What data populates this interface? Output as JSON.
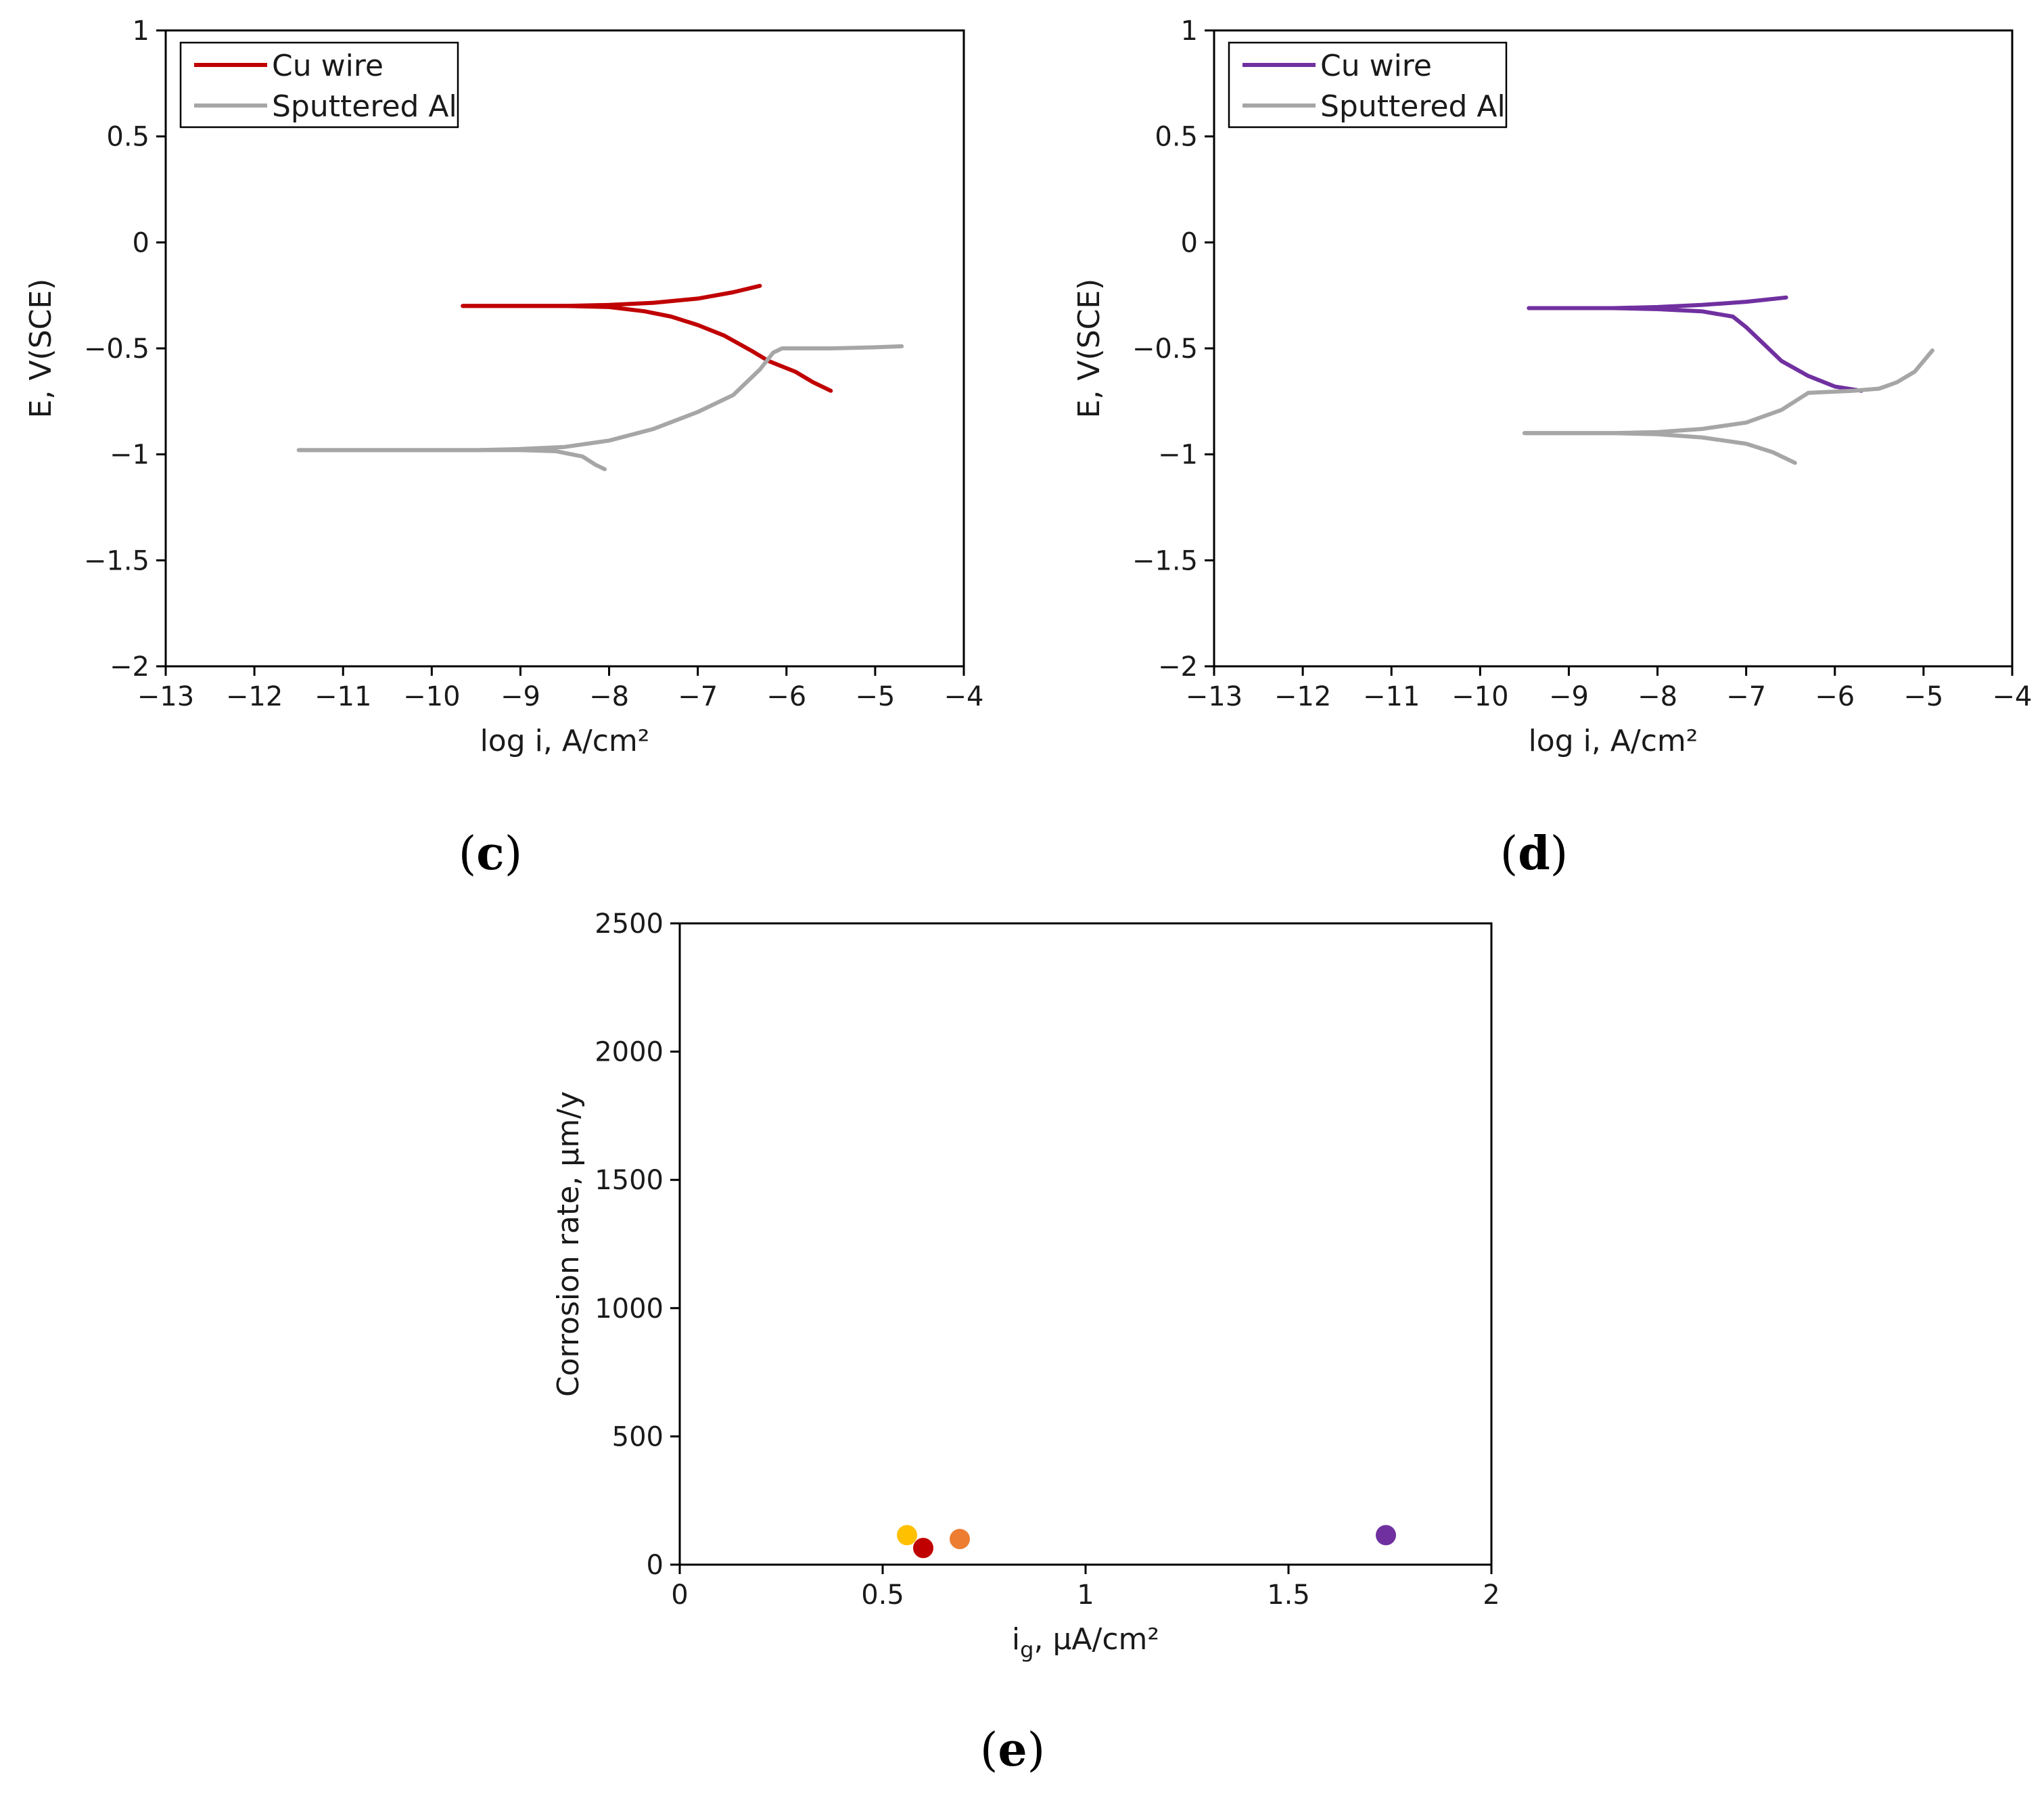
{
  "chart_data": [
    {
      "type": "line",
      "panel": "c",
      "xlabel": "log i, A/cm²",
      "ylabel": "E, V(SCE)",
      "xlim": [
        -13,
        -4
      ],
      "ylim": [
        -2,
        1
      ],
      "xticks": [
        -13,
        -12,
        -11,
        -10,
        -9,
        -8,
        -7,
        -6,
        -5,
        -4
      ],
      "yticks": [
        1,
        0.5,
        0,
        -0.5,
        -1,
        -1.5,
        -2
      ],
      "xtick_labels": [
        "−13",
        "−12",
        "−11",
        "−10",
        "−9",
        "−8",
        "−7",
        "−6",
        "−5",
        "−4"
      ],
      "ytick_labels": [
        "1",
        "0.5",
        "0",
        "−0.5",
        "−1",
        "−1.5",
        "−2"
      ],
      "legend_position": "top-left",
      "series": [
        {
          "name": "Cu wire",
          "color": "#c00000",
          "branches": [
            [
              [
                -9.65,
                -0.3
              ],
              [
                -9.0,
                -0.3
              ],
              [
                -8.5,
                -0.3
              ],
              [
                -8.0,
                -0.295
              ],
              [
                -7.5,
                -0.285
              ],
              [
                -7.0,
                -0.265
              ],
              [
                -6.6,
                -0.235
              ],
              [
                -6.3,
                -0.205
              ]
            ],
            [
              [
                -9.65,
                -0.3
              ],
              [
                -9.0,
                -0.3
              ],
              [
                -8.5,
                -0.3
              ],
              [
                -8.0,
                -0.305
              ],
              [
                -7.6,
                -0.325
              ],
              [
                -7.3,
                -0.35
              ],
              [
                -7.0,
                -0.39
              ],
              [
                -6.7,
                -0.44
              ],
              [
                -6.4,
                -0.51
              ],
              [
                -6.2,
                -0.56
              ],
              [
                -5.9,
                -0.61
              ],
              [
                -5.7,
                -0.66
              ],
              [
                -5.5,
                -0.7
              ]
            ]
          ]
        },
        {
          "name": "Sputtered Al",
          "color": "#a6a6a6",
          "branches": [
            [
              [
                -11.5,
                -0.98
              ],
              [
                -10.5,
                -0.98
              ],
              [
                -9.5,
                -0.98
              ],
              [
                -9.0,
                -0.975
              ],
              [
                -8.5,
                -0.965
              ],
              [
                -8.0,
                -0.935
              ],
              [
                -7.5,
                -0.88
              ],
              [
                -7.0,
                -0.8
              ],
              [
                -6.6,
                -0.72
              ],
              [
                -6.3,
                -0.6
              ],
              [
                -6.15,
                -0.52
              ],
              [
                -6.05,
                -0.5
              ],
              [
                -5.5,
                -0.5
              ],
              [
                -5.0,
                -0.495
              ],
              [
                -4.7,
                -0.49
              ]
            ],
            [
              [
                -11.5,
                -0.98
              ],
              [
                -10.5,
                -0.98
              ],
              [
                -9.5,
                -0.98
              ],
              [
                -9.0,
                -0.98
              ],
              [
                -8.6,
                -0.985
              ],
              [
                -8.3,
                -1.01
              ],
              [
                -8.15,
                -1.05
              ],
              [
                -8.05,
                -1.07
              ]
            ]
          ]
        }
      ]
    },
    {
      "type": "line",
      "panel": "d",
      "xlabel": "log i, A/cm²",
      "ylabel": "E, V(SCE)",
      "xlim": [
        -13,
        -4
      ],
      "ylim": [
        -2,
        1
      ],
      "xticks": [
        -13,
        -12,
        -11,
        -10,
        -9,
        -8,
        -7,
        -6,
        -5,
        -4
      ],
      "yticks": [
        1,
        0.5,
        0,
        -0.5,
        -1,
        -1.5,
        -2
      ],
      "xtick_labels": [
        "−13",
        "−12",
        "−11",
        "−10",
        "−9",
        "−8",
        "−7",
        "−6",
        "−5",
        "−4"
      ],
      "ytick_labels": [
        "1",
        "0.5",
        "0",
        "−0.5",
        "−1",
        "−1.5",
        "−2"
      ],
      "legend_position": "top-left",
      "series": [
        {
          "name": "Cu wire",
          "color": "#7030a0",
          "branches": [
            [
              [
                -9.45,
                -0.31
              ],
              [
                -8.5,
                -0.31
              ],
              [
                -8.0,
                -0.305
              ],
              [
                -7.5,
                -0.295
              ],
              [
                -7.0,
                -0.28
              ],
              [
                -6.55,
                -0.26
              ]
            ],
            [
              [
                -9.45,
                -0.31
              ],
              [
                -8.5,
                -0.31
              ],
              [
                -8.0,
                -0.315
              ],
              [
                -7.5,
                -0.325
              ],
              [
                -7.15,
                -0.35
              ],
              [
                -7.0,
                -0.4
              ],
              [
                -6.8,
                -0.48
              ],
              [
                -6.6,
                -0.56
              ],
              [
                -6.3,
                -0.63
              ],
              [
                -6.0,
                -0.68
              ],
              [
                -5.7,
                -0.7
              ]
            ]
          ]
        },
        {
          "name": "Sputtered Al",
          "color": "#a6a6a6",
          "branches": [
            [
              [
                -9.5,
                -0.9
              ],
              [
                -8.5,
                -0.9
              ],
              [
                -8.0,
                -0.895
              ],
              [
                -7.5,
                -0.88
              ],
              [
                -7.0,
                -0.85
              ],
              [
                -6.6,
                -0.79
              ],
              [
                -6.3,
                -0.71
              ],
              [
                -5.8,
                -0.7
              ],
              [
                -5.5,
                -0.69
              ],
              [
                -5.3,
                -0.66
              ],
              [
                -5.1,
                -0.61
              ],
              [
                -5.0,
                -0.56
              ],
              [
                -4.9,
                -0.51
              ]
            ],
            [
              [
                -9.5,
                -0.9
              ],
              [
                -8.5,
                -0.9
              ],
              [
                -8.0,
                -0.905
              ],
              [
                -7.5,
                -0.92
              ],
              [
                -7.0,
                -0.95
              ],
              [
                -6.7,
                -0.99
              ],
              [
                -6.45,
                -1.04
              ]
            ]
          ]
        }
      ]
    },
    {
      "type": "scatter",
      "panel": "e",
      "xlabel": "i",
      "xlabel_subscript": "g",
      "xlabel_rest": ", μA/cm²",
      "ylabel": "Corrosion rate, μm/y",
      "xlim": [
        0,
        2
      ],
      "ylim": [
        0,
        2500
      ],
      "xticks": [
        0,
        0.5,
        1,
        1.5,
        2
      ],
      "yticks": [
        0,
        500,
        1000,
        1500,
        2000,
        2500
      ],
      "xtick_labels": [
        "0",
        "0.5",
        "1",
        "1.5",
        "2"
      ],
      "ytick_labels": [
        "0",
        "500",
        "1000",
        "1500",
        "2000",
        "2500"
      ],
      "points": [
        {
          "x": 0.56,
          "y": 115,
          "color": "#ffc000"
        },
        {
          "x": 0.6,
          "y": 65,
          "color": "#c00000"
        },
        {
          "x": 0.69,
          "y": 100,
          "color": "#ed7d31"
        },
        {
          "x": 1.74,
          "y": 115,
          "color": "#7030a0"
        }
      ]
    }
  ],
  "labels": {
    "c": "c",
    "d": "d",
    "e": "e",
    "open": "(",
    "close": ")"
  }
}
